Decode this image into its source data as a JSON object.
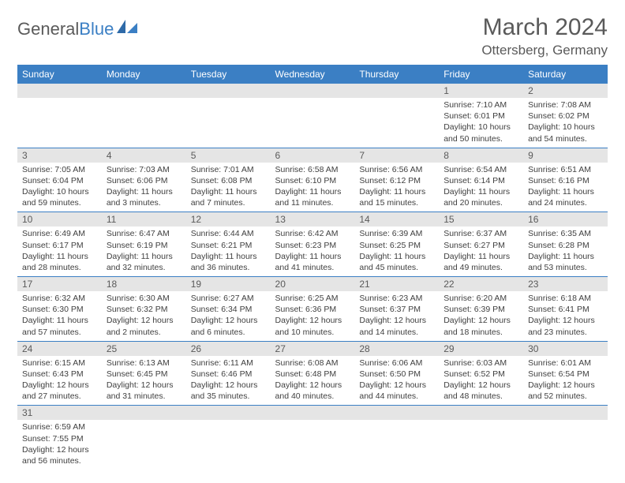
{
  "brand": {
    "part1": "General",
    "part2": "Blue"
  },
  "title": "March 2024",
  "location": "Ottersberg, Germany",
  "colors": {
    "header_bg": "#3b7fc4",
    "header_text": "#ffffff",
    "daynum_bg": "#e5e5e5",
    "text": "#404040",
    "border": "#3b7fc4"
  },
  "weekdays": [
    "Sunday",
    "Monday",
    "Tuesday",
    "Wednesday",
    "Thursday",
    "Friday",
    "Saturday"
  ],
  "weeks": [
    [
      null,
      null,
      null,
      null,
      null,
      {
        "n": "1",
        "sr": "7:10 AM",
        "ss": "6:01 PM",
        "dl": "10 hours and 50 minutes."
      },
      {
        "n": "2",
        "sr": "7:08 AM",
        "ss": "6:02 PM",
        "dl": "10 hours and 54 minutes."
      }
    ],
    [
      {
        "n": "3",
        "sr": "7:05 AM",
        "ss": "6:04 PM",
        "dl": "10 hours and 59 minutes."
      },
      {
        "n": "4",
        "sr": "7:03 AM",
        "ss": "6:06 PM",
        "dl": "11 hours and 3 minutes."
      },
      {
        "n": "5",
        "sr": "7:01 AM",
        "ss": "6:08 PM",
        "dl": "11 hours and 7 minutes."
      },
      {
        "n": "6",
        "sr": "6:58 AM",
        "ss": "6:10 PM",
        "dl": "11 hours and 11 minutes."
      },
      {
        "n": "7",
        "sr": "6:56 AM",
        "ss": "6:12 PM",
        "dl": "11 hours and 15 minutes."
      },
      {
        "n": "8",
        "sr": "6:54 AM",
        "ss": "6:14 PM",
        "dl": "11 hours and 20 minutes."
      },
      {
        "n": "9",
        "sr": "6:51 AM",
        "ss": "6:16 PM",
        "dl": "11 hours and 24 minutes."
      }
    ],
    [
      {
        "n": "10",
        "sr": "6:49 AM",
        "ss": "6:17 PM",
        "dl": "11 hours and 28 minutes."
      },
      {
        "n": "11",
        "sr": "6:47 AM",
        "ss": "6:19 PM",
        "dl": "11 hours and 32 minutes."
      },
      {
        "n": "12",
        "sr": "6:44 AM",
        "ss": "6:21 PM",
        "dl": "11 hours and 36 minutes."
      },
      {
        "n": "13",
        "sr": "6:42 AM",
        "ss": "6:23 PM",
        "dl": "11 hours and 41 minutes."
      },
      {
        "n": "14",
        "sr": "6:39 AM",
        "ss": "6:25 PM",
        "dl": "11 hours and 45 minutes."
      },
      {
        "n": "15",
        "sr": "6:37 AM",
        "ss": "6:27 PM",
        "dl": "11 hours and 49 minutes."
      },
      {
        "n": "16",
        "sr": "6:35 AM",
        "ss": "6:28 PM",
        "dl": "11 hours and 53 minutes."
      }
    ],
    [
      {
        "n": "17",
        "sr": "6:32 AM",
        "ss": "6:30 PM",
        "dl": "11 hours and 57 minutes."
      },
      {
        "n": "18",
        "sr": "6:30 AM",
        "ss": "6:32 PM",
        "dl": "12 hours and 2 minutes."
      },
      {
        "n": "19",
        "sr": "6:27 AM",
        "ss": "6:34 PM",
        "dl": "12 hours and 6 minutes."
      },
      {
        "n": "20",
        "sr": "6:25 AM",
        "ss": "6:36 PM",
        "dl": "12 hours and 10 minutes."
      },
      {
        "n": "21",
        "sr": "6:23 AM",
        "ss": "6:37 PM",
        "dl": "12 hours and 14 minutes."
      },
      {
        "n": "22",
        "sr": "6:20 AM",
        "ss": "6:39 PM",
        "dl": "12 hours and 18 minutes."
      },
      {
        "n": "23",
        "sr": "6:18 AM",
        "ss": "6:41 PM",
        "dl": "12 hours and 23 minutes."
      }
    ],
    [
      {
        "n": "24",
        "sr": "6:15 AM",
        "ss": "6:43 PM",
        "dl": "12 hours and 27 minutes."
      },
      {
        "n": "25",
        "sr": "6:13 AM",
        "ss": "6:45 PM",
        "dl": "12 hours and 31 minutes."
      },
      {
        "n": "26",
        "sr": "6:11 AM",
        "ss": "6:46 PM",
        "dl": "12 hours and 35 minutes."
      },
      {
        "n": "27",
        "sr": "6:08 AM",
        "ss": "6:48 PM",
        "dl": "12 hours and 40 minutes."
      },
      {
        "n": "28",
        "sr": "6:06 AM",
        "ss": "6:50 PM",
        "dl": "12 hours and 44 minutes."
      },
      {
        "n": "29",
        "sr": "6:03 AM",
        "ss": "6:52 PM",
        "dl": "12 hours and 48 minutes."
      },
      {
        "n": "30",
        "sr": "6:01 AM",
        "ss": "6:54 PM",
        "dl": "12 hours and 52 minutes."
      }
    ],
    [
      {
        "n": "31",
        "sr": "6:59 AM",
        "ss": "7:55 PM",
        "dl": "12 hours and 56 minutes."
      },
      null,
      null,
      null,
      null,
      null,
      null
    ]
  ],
  "labels": {
    "sunrise": "Sunrise:",
    "sunset": "Sunset:",
    "daylight": "Daylight:"
  }
}
